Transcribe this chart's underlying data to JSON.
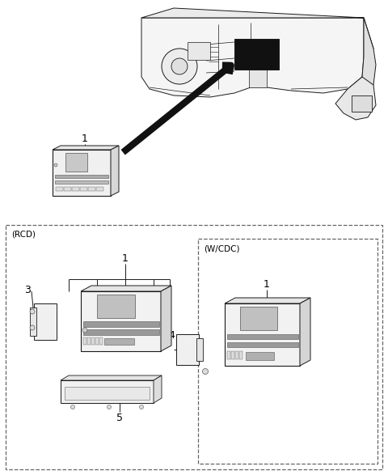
{
  "bg_color": "#ffffff",
  "fig_width": 4.8,
  "fig_height": 5.87,
  "dpi": 100,
  "rcd_label": "(RCD)",
  "wcdc_label": "(W/CDC)",
  "text_color": "#000000",
  "line_color": "#1a1a1a",
  "dash_color": "#555555",
  "label_fontsize": 7.5,
  "number_fontsize": 9
}
